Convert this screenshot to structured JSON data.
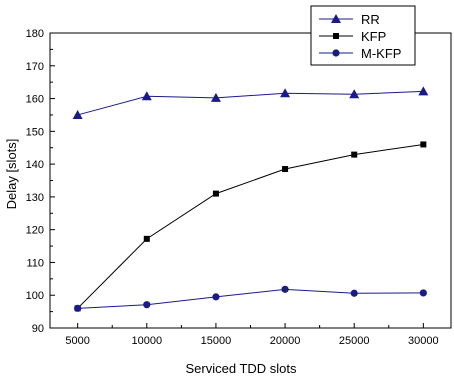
{
  "chart_data": {
    "type": "line",
    "title": "",
    "xlabel": "Serviced TDD slots",
    "ylabel": "Delay [slots]",
    "x": [
      5000,
      10000,
      15000,
      20000,
      25000,
      30000
    ],
    "xticks": [
      "5000",
      "10000",
      "15000",
      "20000",
      "25000",
      "30000"
    ],
    "xlim": [
      3000,
      32000
    ],
    "ylim": [
      90,
      180
    ],
    "yticks": [
      "90",
      "100",
      "110",
      "120",
      "130",
      "140",
      "150",
      "160",
      "170",
      "180"
    ],
    "grid": false,
    "legend_position": "top-right",
    "series": [
      {
        "name": "RR",
        "marker": "triangle",
        "color": "#1a1a8c",
        "values": [
          155,
          160.7,
          160.2,
          161.6,
          161.3,
          162.2
        ]
      },
      {
        "name": "KFP",
        "marker": "square",
        "color": "#000000",
        "values": [
          96,
          117.2,
          131,
          138.5,
          142.9,
          146
        ]
      },
      {
        "name": "M-KFP",
        "marker": "circle",
        "color": "#1a1a8c",
        "values": [
          96,
          97.1,
          99.5,
          101.8,
          100.6,
          100.7
        ]
      }
    ]
  }
}
